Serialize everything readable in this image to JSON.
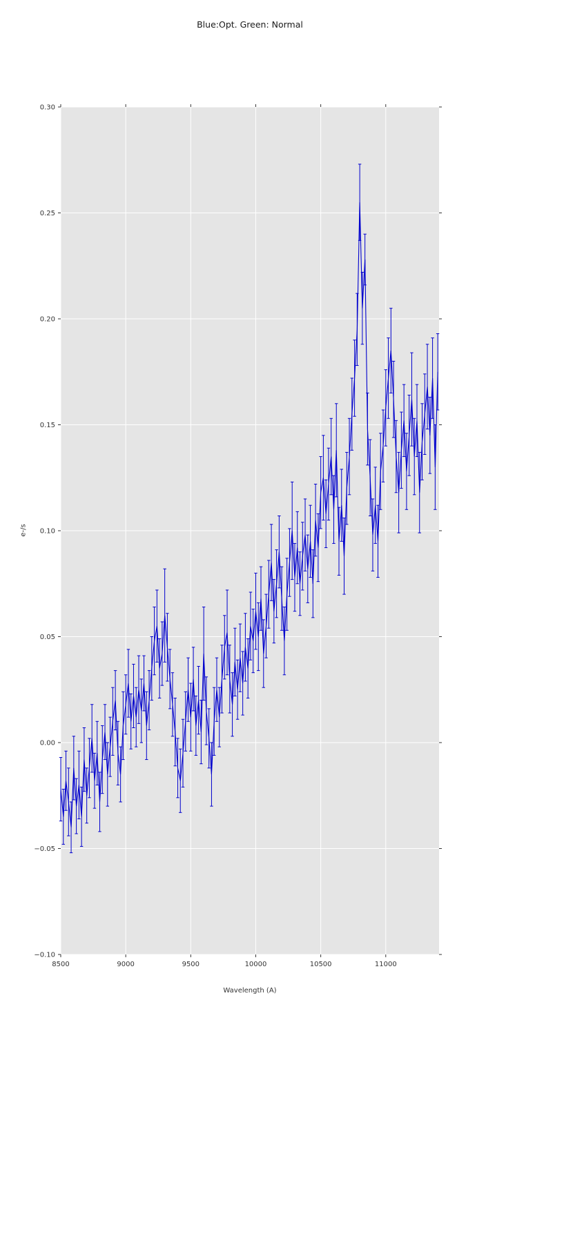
{
  "chart_data": {
    "type": "line",
    "title": "Blue:Opt. Green: Normal",
    "xlabel": "Wavelength (A)",
    "ylabel": "e-/s",
    "xlim": [
      8500,
      11410
    ],
    "ylim": [
      -0.1,
      0.3
    ],
    "xticks": [
      8500,
      9000,
      9500,
      10000,
      10500,
      11000
    ],
    "yticks": [
      -0.1,
      -0.05,
      0.0,
      0.05,
      0.1,
      0.15,
      0.2,
      0.25,
      0.3
    ],
    "grid": true,
    "legend_position": "none",
    "line_color": "#0000cd",
    "plot_bg": "#e5e5e5",
    "grid_color": "#ffffff",
    "tick_color": "#333333",
    "series": [
      {
        "name": "spectrum",
        "x": [
          8500,
          8520,
          8540,
          8560,
          8580,
          8600,
          8620,
          8640,
          8660,
          8680,
          8700,
          8720,
          8740,
          8760,
          8780,
          8800,
          8820,
          8840,
          8860,
          8880,
          8900,
          8920,
          8940,
          8960,
          8980,
          9000,
          9020,
          9040,
          9060,
          9080,
          9100,
          9120,
          9140,
          9160,
          9180,
          9200,
          9220,
          9240,
          9260,
          9280,
          9300,
          9320,
          9340,
          9360,
          9380,
          9400,
          9420,
          9440,
          9460,
          9480,
          9500,
          9520,
          9540,
          9560,
          9580,
          9600,
          9620,
          9640,
          9660,
          9680,
          9700,
          9720,
          9740,
          9760,
          9780,
          9800,
          9820,
          9840,
          9860,
          9880,
          9900,
          9920,
          9940,
          9960,
          9980,
          10000,
          10020,
          10040,
          10060,
          10080,
          10100,
          10120,
          10140,
          10160,
          10180,
          10200,
          10220,
          10240,
          10260,
          10280,
          10300,
          10320,
          10340,
          10360,
          10380,
          10400,
          10420,
          10440,
          10460,
          10480,
          10500,
          10520,
          10540,
          10560,
          10580,
          10600,
          10620,
          10640,
          10660,
          10680,
          10700,
          10720,
          10740,
          10760,
          10780,
          10800,
          10820,
          10840,
          10860,
          10880,
          10900,
          10920,
          10940,
          10960,
          10980,
          11000,
          11020,
          11040,
          11060,
          11080,
          11100,
          11120,
          11140,
          11160,
          11180,
          11200,
          11220,
          11240,
          11260,
          11280,
          11300,
          11320,
          11340,
          11360,
          11380,
          11400
        ],
        "y": [
          -0.022,
          -0.035,
          -0.018,
          -0.028,
          -0.04,
          -0.012,
          -0.03,
          -0.02,
          -0.035,
          -0.008,
          -0.025,
          -0.012,
          0.002,
          -0.018,
          -0.005,
          -0.028,
          -0.008,
          0.005,
          -0.015,
          -0.002,
          0.01,
          0.02,
          -0.005,
          -0.015,
          0.008,
          0.018,
          0.028,
          0.01,
          0.022,
          0.012,
          0.025,
          0.015,
          0.028,
          0.008,
          0.02,
          0.035,
          0.048,
          0.055,
          0.035,
          0.042,
          0.06,
          0.045,
          0.03,
          0.018,
          0.005,
          -0.012,
          -0.018,
          -0.005,
          0.01,
          0.025,
          0.012,
          0.03,
          0.008,
          0.02,
          0.005,
          0.042,
          0.015,
          0.002,
          -0.015,
          0.01,
          0.025,
          0.012,
          0.03,
          0.045,
          0.052,
          0.03,
          0.018,
          0.038,
          0.025,
          0.04,
          0.028,
          0.045,
          0.035,
          0.055,
          0.048,
          0.062,
          0.05,
          0.068,
          0.042,
          0.055,
          0.07,
          0.085,
          0.062,
          0.075,
          0.09,
          0.068,
          0.048,
          0.07,
          0.085,
          0.1,
          0.078,
          0.092,
          0.075,
          0.088,
          0.098,
          0.082,
          0.095,
          0.075,
          0.105,
          0.092,
          0.118,
          0.125,
          0.108,
          0.122,
          0.135,
          0.11,
          0.138,
          0.095,
          0.112,
          0.088,
          0.12,
          0.135,
          0.155,
          0.172,
          0.195,
          0.255,
          0.205,
          0.228,
          0.148,
          0.125,
          0.098,
          0.112,
          0.095,
          0.128,
          0.14,
          0.158,
          0.172,
          0.185,
          0.162,
          0.135,
          0.118,
          0.138,
          0.152,
          0.128,
          0.145,
          0.162,
          0.135,
          0.152,
          0.118,
          0.142,
          0.155,
          0.168,
          0.145,
          0.172,
          0.13,
          0.175
        ],
        "yerr": [
          0.015,
          0.013,
          0.014,
          0.016,
          0.012,
          0.015,
          0.013,
          0.016,
          0.014,
          0.015,
          0.013,
          0.014,
          0.016,
          0.013,
          0.015,
          0.014,
          0.016,
          0.013,
          0.015,
          0.014,
          0.016,
          0.014,
          0.015,
          0.013,
          0.016,
          0.014,
          0.016,
          0.013,
          0.015,
          0.014,
          0.016,
          0.015,
          0.013,
          0.016,
          0.014,
          0.015,
          0.016,
          0.017,
          0.014,
          0.015,
          0.022,
          0.016,
          0.014,
          0.015,
          0.016,
          0.014,
          0.015,
          0.016,
          0.014,
          0.015,
          0.016,
          0.015,
          0.014,
          0.016,
          0.015,
          0.022,
          0.016,
          0.014,
          0.015,
          0.016,
          0.015,
          0.014,
          0.016,
          0.015,
          0.02,
          0.016,
          0.015,
          0.016,
          0.014,
          0.016,
          0.015,
          0.016,
          0.014,
          0.016,
          0.015,
          0.018,
          0.016,
          0.015,
          0.016,
          0.015,
          0.016,
          0.018,
          0.015,
          0.016,
          0.017,
          0.015,
          0.016,
          0.017,
          0.016,
          0.023,
          0.016,
          0.017,
          0.015,
          0.016,
          0.017,
          0.016,
          0.017,
          0.016,
          0.017,
          0.016,
          0.017,
          0.02,
          0.016,
          0.017,
          0.018,
          0.016,
          0.022,
          0.016,
          0.017,
          0.018,
          0.017,
          0.018,
          0.017,
          0.018,
          0.017,
          0.018,
          0.017,
          0.012,
          0.017,
          0.018,
          0.017,
          0.018,
          0.017,
          0.018,
          0.017,
          0.018,
          0.019,
          0.02,
          0.018,
          0.017,
          0.019,
          0.018,
          0.017,
          0.018,
          0.019,
          0.022,
          0.018,
          0.017,
          0.019,
          0.018,
          0.019,
          0.02,
          0.018,
          0.019,
          0.02,
          0.018
        ]
      }
    ]
  }
}
